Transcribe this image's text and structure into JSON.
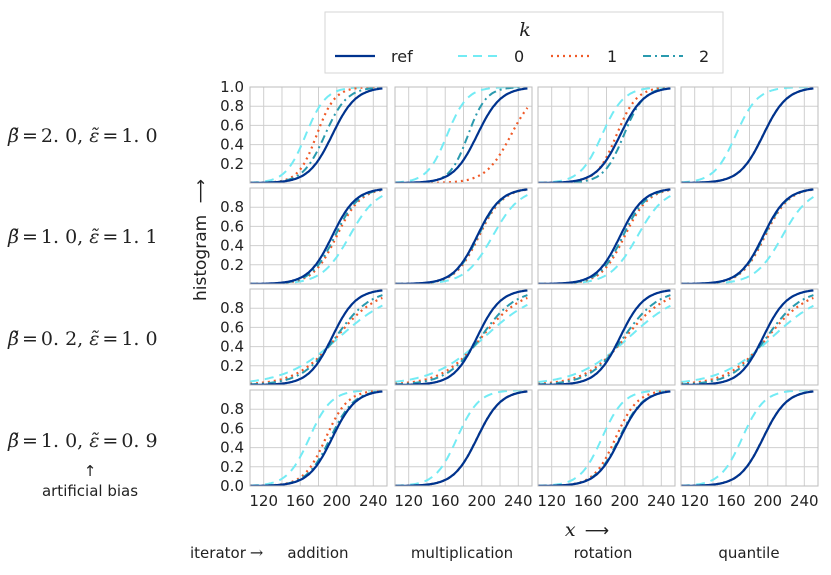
{
  "chart_data": {
    "type": "line",
    "legend": {
      "title": "k",
      "entries": [
        {
          "label": "ref",
          "color": "#00338e",
          "dash": "solid"
        },
        {
          "label": "0",
          "color": "#73ebf4",
          "dash": "dashed"
        },
        {
          "label": "1",
          "color": "#f05a28",
          "dash": "dotted"
        },
        {
          "label": "2",
          "color": "#2a9aae",
          "dash": "dashdot"
        }
      ]
    },
    "ylabel": "histogram",
    "ylabel_arrow": "⟶",
    "xlabel": "x",
    "xlabel_arrow": "⟶",
    "xticks": [
      "120",
      "160",
      "200",
      "240"
    ],
    "xlim": [
      105,
      255
    ],
    "ylim": [
      0,
      1
    ],
    "yticks_first_row": [
      "0.2",
      "0.4",
      "0.6",
      "0.8",
      "1.0"
    ],
    "yticks_other_rows": [
      "0.2",
      "0.4",
      "0.6",
      "0.8"
    ],
    "yticks_last_row": [
      "0.0",
      "0.2",
      "0.4",
      "0.6",
      "0.8"
    ],
    "iterator_prefix": "iterator",
    "iterator_arrow": "→",
    "columns": [
      "addition",
      "multiplication",
      "rotation",
      "quantile"
    ],
    "rows": [
      {
        "beta_sym": "β̃",
        "beta": "2. 0",
        "eps_sym": "ε̃",
        "eps": "1. 0"
      },
      {
        "beta_sym": "β̃",
        "beta": "1. 0",
        "eps_sym": "ε̃",
        "eps": "1. 1"
      },
      {
        "beta_sym": "β̃",
        "beta": "0. 2",
        "eps_sym": "ε̃",
        "eps": "1. 0"
      },
      {
        "beta_sym": "β̃",
        "beta": "1. 0",
        "eps_sym": "ε̃",
        "eps": "0. 9"
      }
    ],
    "row_note_arrow": "↑",
    "row_note": "artificial bias",
    "curve_model": "logistic CDF: y = 1/(1+exp(-(x-mu)/s))",
    "ref": {
      "mu": 195,
      "s": 13
    },
    "panels": [
      [
        {
          "k0": {
            "mu": 166,
            "s": 11
          },
          "k1": {
            "mu": 178,
            "s": 10
          },
          "k2": {
            "mu": 187,
            "s": 12
          }
        },
        {
          "k0": {
            "mu": 162,
            "s": 11
          },
          "k1": {
            "mu": 232,
            "s": 14
          },
          "k2": {
            "mu": 185,
            "s": 10
          }
        },
        {
          "k0": {
            "mu": 175,
            "s": 12
          },
          "k1": {
            "mu": 191,
            "s": 11
          },
          "k2": {
            "mu": 199,
            "s": 11
          }
        },
        {
          "k0": {
            "mu": 165,
            "s": 12
          },
          "k1": {
            "mu": 195,
            "s": 13
          },
          "k2": {
            "mu": 195,
            "s": 13
          }
        }
      ],
      [
        {
          "k0": {
            "mu": 214,
            "s": 15
          },
          "k1": {
            "mu": 200,
            "s": 13
          },
          "k2": {
            "mu": 198,
            "s": 13
          }
        },
        {
          "k0": {
            "mu": 212,
            "s": 15
          },
          "k1": {
            "mu": 197,
            "s": 13
          },
          "k2": {
            "mu": 196,
            "s": 13
          }
        },
        {
          "k0": {
            "mu": 214,
            "s": 15
          },
          "k1": {
            "mu": 200,
            "s": 13
          },
          "k2": {
            "mu": 198,
            "s": 13
          }
        },
        {
          "k0": {
            "mu": 216,
            "s": 15
          },
          "k1": {
            "mu": 197,
            "s": 13
          },
          "k2": {
            "mu": 196,
            "s": 13
          }
        }
      ],
      [
        {
          "k0": {
            "mu": 203,
            "s": 30
          },
          "k1": {
            "mu": 200,
            "s": 22
          },
          "k2": {
            "mu": 199,
            "s": 19
          }
        },
        {
          "k0": {
            "mu": 203,
            "s": 29
          },
          "k1": {
            "mu": 200,
            "s": 22
          },
          "k2": {
            "mu": 199,
            "s": 19
          }
        },
        {
          "k0": {
            "mu": 205,
            "s": 29
          },
          "k1": {
            "mu": 201,
            "s": 22
          },
          "k2": {
            "mu": 199,
            "s": 19
          }
        },
        {
          "k0": {
            "mu": 205,
            "s": 29
          },
          "k1": {
            "mu": 200,
            "s": 22
          },
          "k2": {
            "mu": 199,
            "s": 19
          }
        }
      ],
      [
        {
          "k0": {
            "mu": 170,
            "s": 12
          },
          "k1": {
            "mu": 188,
            "s": 12
          },
          "k2": {
            "mu": 193,
            "s": 13
          }
        },
        {
          "k0": {
            "mu": 173,
            "s": 12
          },
          "k1": {
            "mu": 195,
            "s": 13
          },
          "k2": {
            "mu": 195,
            "s": 13
          }
        },
        {
          "k0": {
            "mu": 175,
            "s": 12
          },
          "k1": {
            "mu": 190,
            "s": 12
          },
          "k2": {
            "mu": 194,
            "s": 13
          }
        },
        {
          "k0": {
            "mu": 172,
            "s": 12
          },
          "k1": {
            "mu": 195,
            "s": 13
          },
          "k2": {
            "mu": 195,
            "s": 13
          }
        }
      ]
    ]
  },
  "colors": {
    "grid": "#cfcfcf",
    "frame": "#bdbdbd",
    "panel_bg": "#ffffff"
  }
}
